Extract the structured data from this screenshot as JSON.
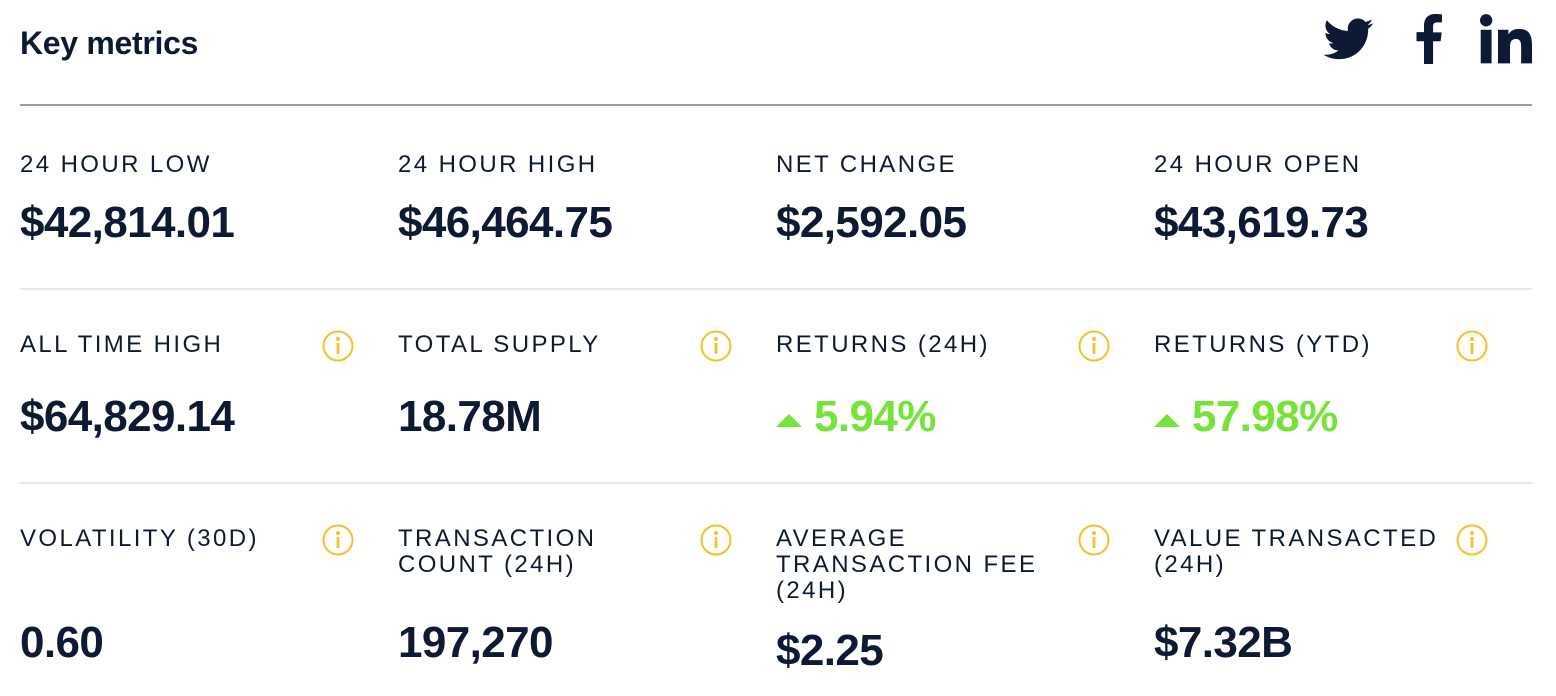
{
  "header": {
    "title": "Key metrics",
    "social": [
      {
        "icon": "twitter-icon"
      },
      {
        "icon": "facebook-icon"
      },
      {
        "icon": "linkedin-icon"
      }
    ]
  },
  "colors": {
    "text": "#0e1a33",
    "positive": "#74e33a",
    "info_icon": "#f5c02a",
    "divider": "#e6e8f0",
    "header_divider": "#9a9ca3"
  },
  "metrics": {
    "low_24h": {
      "label": "24 HOUR LOW",
      "value": "$42,814.01"
    },
    "high_24h": {
      "label": "24 HOUR HIGH",
      "value": "$46,464.75"
    },
    "net_change": {
      "label": "NET CHANGE",
      "value": "$2,592.05"
    },
    "open_24h": {
      "label": "24 HOUR OPEN",
      "value": "$43,619.73"
    },
    "all_time_high": {
      "label": "ALL TIME HIGH",
      "value": "$64,829.14",
      "info_icon": "info-icon"
    },
    "total_supply": {
      "label": "TOTAL SUPPLY",
      "value": "18.78M",
      "info_icon": "info-icon"
    },
    "returns_24h": {
      "label": "RETURNS (24H)",
      "value": "5.94%",
      "trend": "up",
      "info_icon": "info-icon"
    },
    "returns_ytd": {
      "label": "RETURNS (YTD)",
      "value": "57.98%",
      "trend": "up",
      "info_icon": "info-icon"
    },
    "volatility_30d": {
      "label": "VOLATILITY (30D)",
      "value": "0.60",
      "info_icon": "info-icon"
    },
    "transaction_count": {
      "label": "TRANSACTION COUNT (24H)",
      "value": "197,270",
      "info_icon": "info-icon"
    },
    "avg_transaction_fee": {
      "label": "AVERAGE TRANSACTION FEE (24H)",
      "value": "$2.25",
      "info_icon": "info-icon"
    },
    "value_transacted": {
      "label": "VALUE TRANSACTED (24H)",
      "value": "$7.32B",
      "info_icon": "info-icon"
    }
  }
}
